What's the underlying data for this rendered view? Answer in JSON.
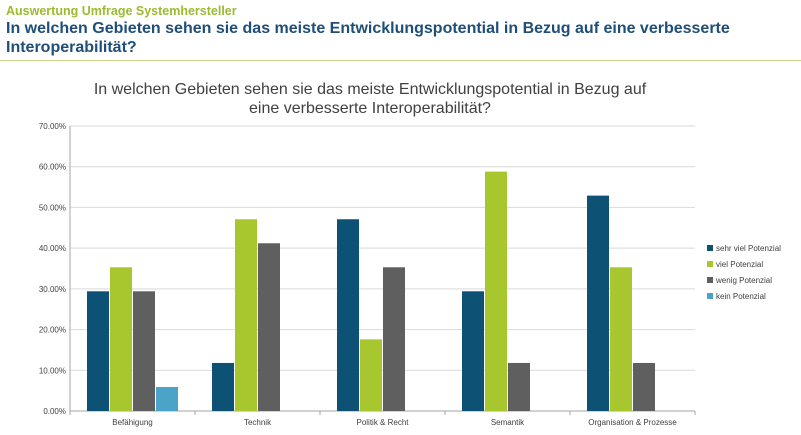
{
  "slide": {
    "subtitle": "Auswertung Umfrage Systemhersteller",
    "title": "In welchen Gebieten sehen sie das meiste Entwicklungspotential in Bezug auf eine verbesserte Interoperabilität?"
  },
  "colors": {
    "subtitle": "#9bbb30",
    "title": "#1f4e79",
    "axis": "#a6a6a6",
    "grid": "#d9d9d9",
    "text": "#404040"
  },
  "chart_data": {
    "type": "bar",
    "title": "In welchen Gebieten sehen sie das meiste Entwicklungspotential in Bezug auf eine verbesserte Interoperabilität?",
    "xlabel": "",
    "ylabel": "",
    "ylim": [
      0,
      70
    ],
    "yticks": [
      "0.00%",
      "10.00%",
      "20.00%",
      "30.00%",
      "40.00%",
      "50.00%",
      "60.00%",
      "70.00%"
    ],
    "grid": true,
    "legend_position": "right",
    "categories": [
      "Befähigung",
      "Technik",
      "Politik & Recht",
      "Semantik",
      "Organisation & Prozesse"
    ],
    "series": [
      {
        "name": "sehr viel Potenzial",
        "color": "#0d5175",
        "values": [
          29.4,
          11.8,
          47.1,
          29.4,
          52.9
        ]
      },
      {
        "name": "viel Potenzial",
        "color": "#a8c72f",
        "values": [
          35.3,
          47.1,
          17.6,
          58.8,
          35.3
        ]
      },
      {
        "name": "wenig Potenzial",
        "color": "#5f5f5f",
        "values": [
          29.4,
          41.2,
          35.3,
          11.8,
          11.8
        ]
      },
      {
        "name": "kein Potenzial",
        "color": "#4ba3c8",
        "values": [
          5.9,
          0,
          0,
          0,
          0
        ]
      }
    ]
  }
}
